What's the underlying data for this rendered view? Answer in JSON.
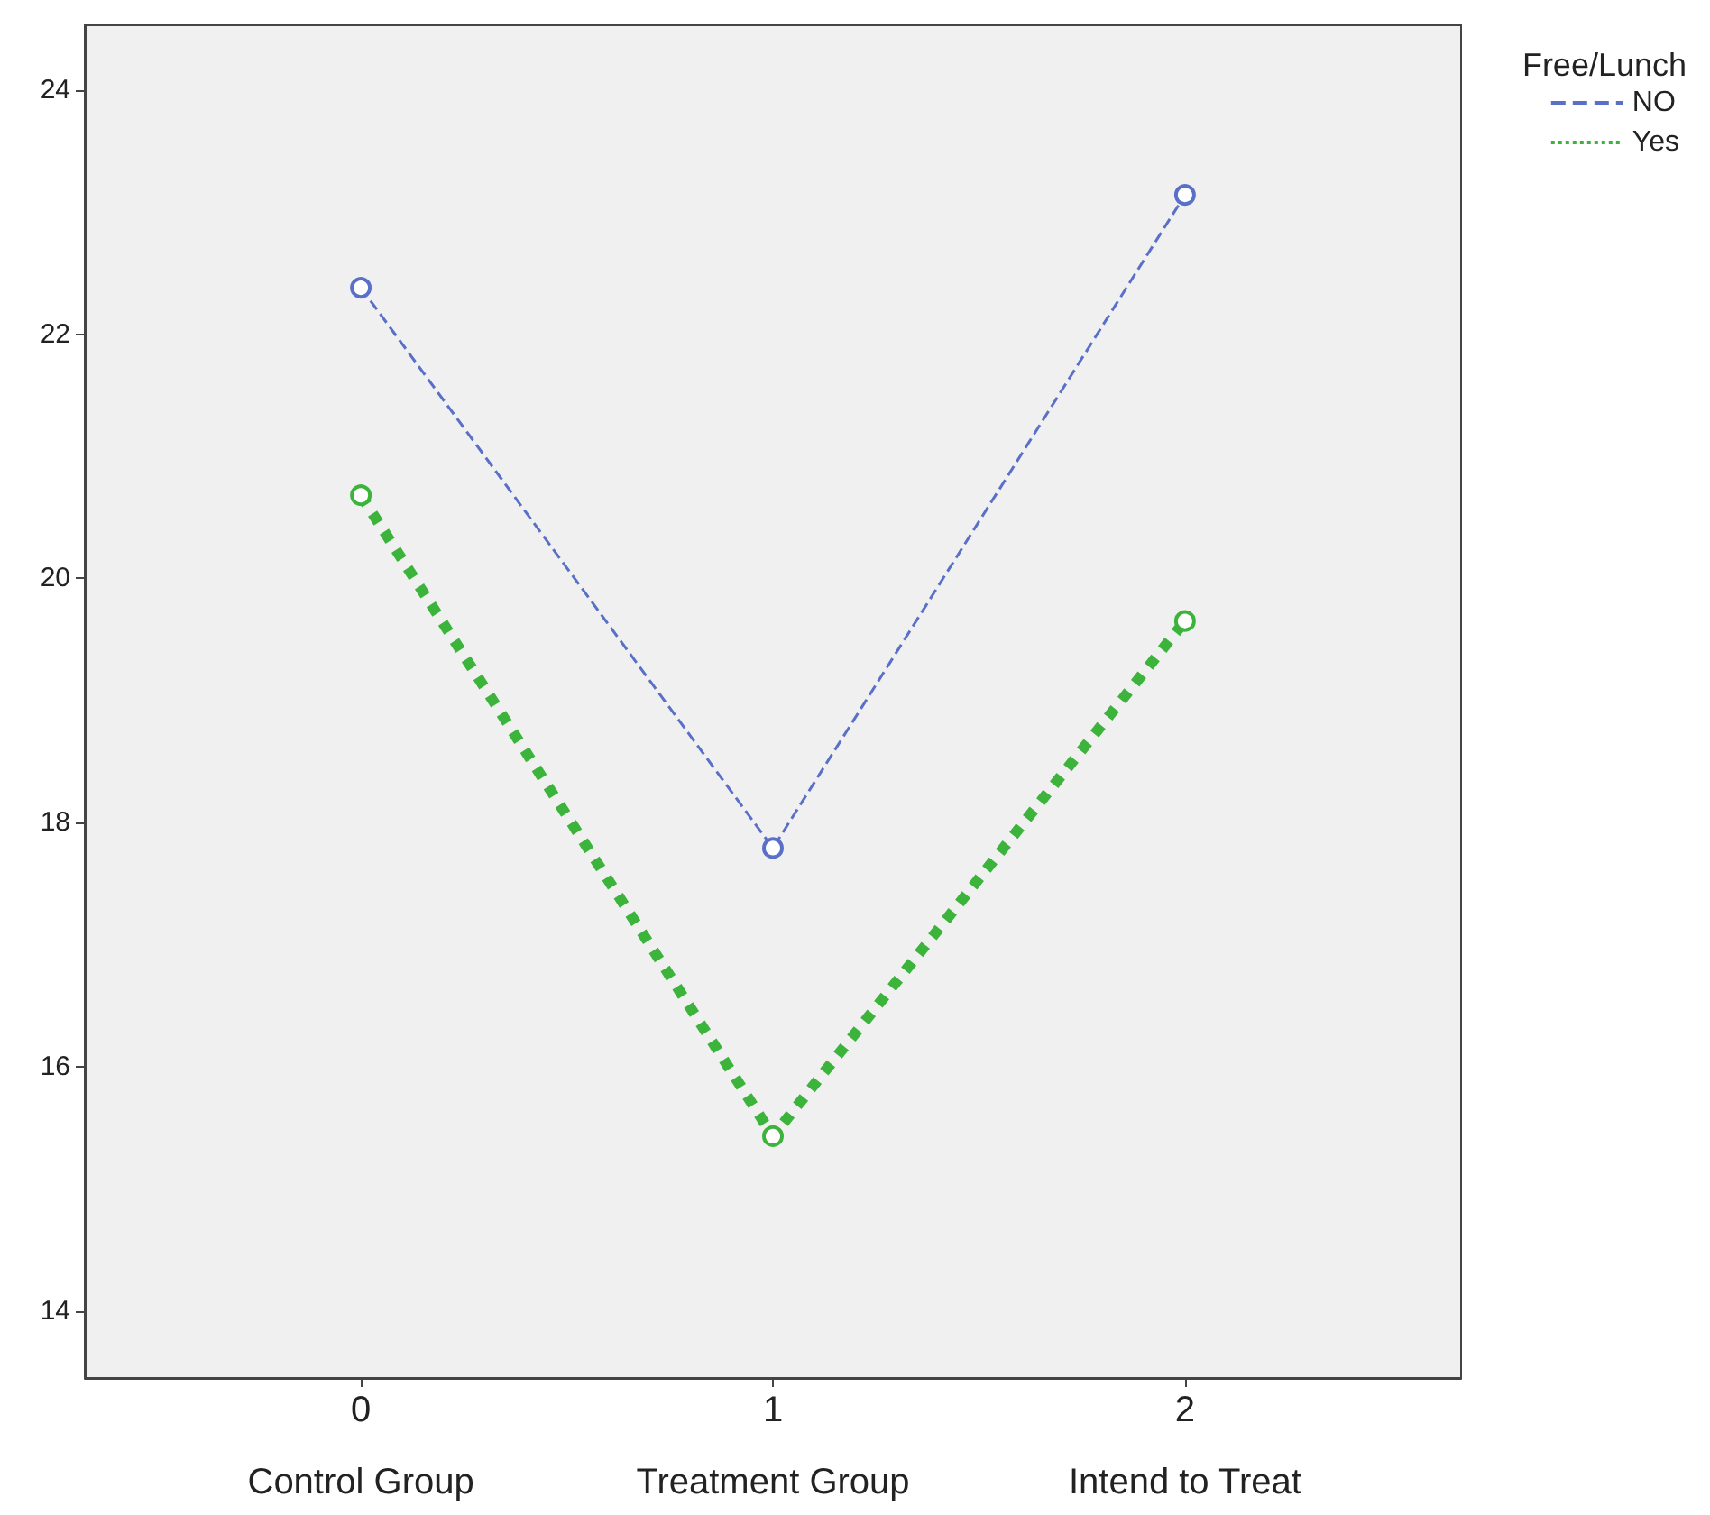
{
  "chart_data": {
    "type": "line",
    "legend_title": "Free/Lunch",
    "legend": "top right",
    "marker": "circle",
    "grid": false,
    "x": [
      0,
      1,
      2
    ],
    "xlim": [
      -0.67,
      2.67
    ],
    "xticks": [
      {
        "value": 0,
        "label": "0\n\nControl Group"
      },
      {
        "value": 1,
        "label": "1\n\nTreatment Group"
      },
      {
        "value": 2,
        "label": "2\n\nIntend to Treat"
      }
    ],
    "ylim": [
      13.45,
      24.53
    ],
    "yticks": [
      14,
      16,
      18,
      20,
      22,
      24
    ],
    "series": [
      {
        "name": "NO",
        "color": "#5a6fc8",
        "line_style": "dashed",
        "values": [
          22.38,
          17.79,
          23.14
        ]
      },
      {
        "name": "Yes",
        "color": "#3cb43c",
        "line_style": "dotted",
        "values": [
          20.68,
          15.43,
          19.65
        ]
      }
    ]
  }
}
